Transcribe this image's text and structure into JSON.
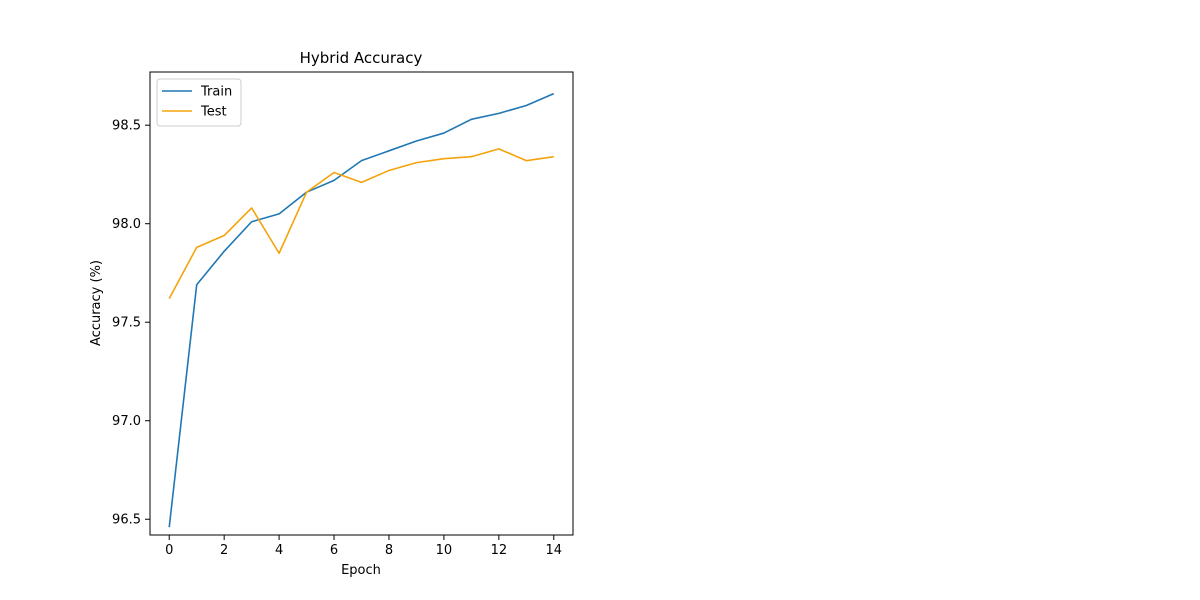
{
  "chart_data": {
    "type": "line",
    "title": "Hybrid Accuracy",
    "xlabel": "Epoch",
    "ylabel": "Accuracy (%)",
    "xlim": [
      -0.7,
      14.7
    ],
    "ylim": [
      96.42,
      98.77
    ],
    "xticks": [
      0,
      2,
      4,
      6,
      8,
      10,
      12,
      14
    ],
    "yticks": [
      96.5,
      97.0,
      97.5,
      98.0,
      98.5
    ],
    "ytick_labels": [
      "96.5",
      "97.0",
      "97.5",
      "98.0",
      "98.5"
    ],
    "grid": false,
    "legend_position": "top-left",
    "x": [
      0,
      1,
      2,
      3,
      4,
      5,
      6,
      7,
      8,
      9,
      10,
      11,
      12,
      13,
      14
    ],
    "series": [
      {
        "name": "Train",
        "color": "#1f77b4",
        "values": [
          96.46,
          97.69,
          97.86,
          98.01,
          98.05,
          98.16,
          98.22,
          98.32,
          98.37,
          98.42,
          98.46,
          98.53,
          98.56,
          98.6,
          98.66
        ]
      },
      {
        "name": "Test",
        "color": "#f5a30c",
        "values": [
          97.62,
          97.88,
          97.94,
          98.08,
          97.85,
          98.16,
          98.26,
          98.21,
          98.27,
          98.31,
          98.33,
          98.34,
          98.38,
          98.32,
          98.34
        ]
      }
    ]
  }
}
